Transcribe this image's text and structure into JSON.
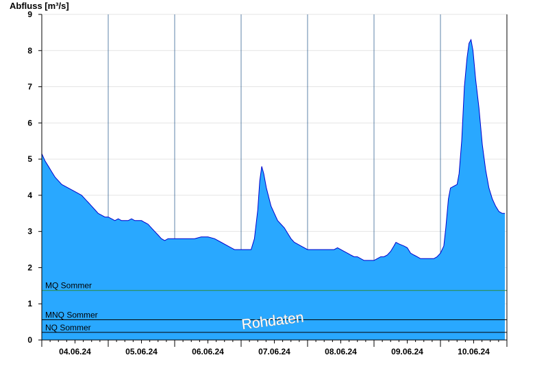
{
  "chart_data": {
    "type": "area",
    "ylabel": "Abfluss [m³/s]",
    "ylim": [
      0,
      9
    ],
    "yticks": [
      0,
      1,
      2,
      3,
      4,
      5,
      6,
      7,
      8,
      9
    ],
    "x_day_labels": [
      "04.06.24",
      "05.06.24",
      "06.06.24",
      "07.06.24",
      "08.06.24",
      "09.06.24",
      "10.06.24"
    ],
    "x_range_days": [
      0,
      7
    ],
    "grid": true,
    "watermark": "Rohdaten",
    "reference_lines": [
      {
        "label": "MQ Sommer",
        "value": 1.37,
        "color": "#2e8b3a"
      },
      {
        "label": "MNQ Sommer",
        "value": 0.56,
        "color": "#000000"
      },
      {
        "label": "NQ Sommer",
        "value": 0.21,
        "color": "#000000"
      }
    ],
    "series": [
      {
        "fill_color": "#29a8ff",
        "line_color": "#0000cc",
        "points": [
          [
            0.0,
            5.15
          ],
          [
            0.05,
            4.95
          ],
          [
            0.1,
            4.8
          ],
          [
            0.15,
            4.65
          ],
          [
            0.2,
            4.5
          ],
          [
            0.25,
            4.4
          ],
          [
            0.3,
            4.3
          ],
          [
            0.4,
            4.2
          ],
          [
            0.5,
            4.1
          ],
          [
            0.6,
            4.0
          ],
          [
            0.65,
            3.9
          ],
          [
            0.7,
            3.8
          ],
          [
            0.75,
            3.7
          ],
          [
            0.8,
            3.6
          ],
          [
            0.85,
            3.5
          ],
          [
            0.9,
            3.45
          ],
          [
            0.95,
            3.4
          ],
          [
            1.0,
            3.4
          ],
          [
            1.05,
            3.35
          ],
          [
            1.1,
            3.3
          ],
          [
            1.15,
            3.35
          ],
          [
            1.2,
            3.3
          ],
          [
            1.25,
            3.3
          ],
          [
            1.3,
            3.3
          ],
          [
            1.35,
            3.35
          ],
          [
            1.4,
            3.3
          ],
          [
            1.45,
            3.3
          ],
          [
            1.5,
            3.3
          ],
          [
            1.55,
            3.25
          ],
          [
            1.6,
            3.2
          ],
          [
            1.65,
            3.1
          ],
          [
            1.7,
            3.0
          ],
          [
            1.75,
            2.9
          ],
          [
            1.8,
            2.8
          ],
          [
            1.85,
            2.75
          ],
          [
            1.9,
            2.8
          ],
          [
            2.0,
            2.8
          ],
          [
            2.1,
            2.8
          ],
          [
            2.2,
            2.8
          ],
          [
            2.3,
            2.8
          ],
          [
            2.4,
            2.85
          ],
          [
            2.5,
            2.85
          ],
          [
            2.6,
            2.8
          ],
          [
            2.7,
            2.7
          ],
          [
            2.8,
            2.6
          ],
          [
            2.85,
            2.55
          ],
          [
            2.9,
            2.5
          ],
          [
            3.0,
            2.5
          ],
          [
            3.1,
            2.5
          ],
          [
            3.15,
            2.5
          ],
          [
            3.2,
            2.8
          ],
          [
            3.25,
            3.6
          ],
          [
            3.28,
            4.4
          ],
          [
            3.31,
            4.8
          ],
          [
            3.34,
            4.6
          ],
          [
            3.38,
            4.2
          ],
          [
            3.45,
            3.7
          ],
          [
            3.5,
            3.5
          ],
          [
            3.55,
            3.3
          ],
          [
            3.6,
            3.2
          ],
          [
            3.65,
            3.1
          ],
          [
            3.7,
            2.95
          ],
          [
            3.75,
            2.8
          ],
          [
            3.8,
            2.7
          ],
          [
            3.85,
            2.65
          ],
          [
            3.9,
            2.6
          ],
          [
            4.0,
            2.5
          ],
          [
            4.1,
            2.5
          ],
          [
            4.2,
            2.5
          ],
          [
            4.3,
            2.5
          ],
          [
            4.4,
            2.5
          ],
          [
            4.45,
            2.55
          ],
          [
            4.5,
            2.5
          ],
          [
            4.55,
            2.45
          ],
          [
            4.6,
            2.4
          ],
          [
            4.65,
            2.35
          ],
          [
            4.7,
            2.3
          ],
          [
            4.75,
            2.3
          ],
          [
            4.8,
            2.25
          ],
          [
            4.85,
            2.2
          ],
          [
            4.9,
            2.2
          ],
          [
            4.95,
            2.2
          ],
          [
            5.0,
            2.2
          ],
          [
            5.05,
            2.25
          ],
          [
            5.1,
            2.3
          ],
          [
            5.15,
            2.3
          ],
          [
            5.2,
            2.35
          ],
          [
            5.25,
            2.45
          ],
          [
            5.3,
            2.6
          ],
          [
            5.33,
            2.7
          ],
          [
            5.38,
            2.65
          ],
          [
            5.45,
            2.6
          ],
          [
            5.5,
            2.55
          ],
          [
            5.55,
            2.4
          ],
          [
            5.6,
            2.35
          ],
          [
            5.65,
            2.3
          ],
          [
            5.7,
            2.25
          ],
          [
            5.8,
            2.25
          ],
          [
            5.9,
            2.25
          ],
          [
            5.95,
            2.3
          ],
          [
            6.0,
            2.4
          ],
          [
            6.05,
            2.6
          ],
          [
            6.08,
            3.1
          ],
          [
            6.12,
            3.9
          ],
          [
            6.15,
            4.2
          ],
          [
            6.2,
            4.25
          ],
          [
            6.25,
            4.3
          ],
          [
            6.28,
            4.6
          ],
          [
            6.32,
            5.5
          ],
          [
            6.36,
            7.0
          ],
          [
            6.4,
            7.8
          ],
          [
            6.43,
            8.2
          ],
          [
            6.46,
            8.3
          ],
          [
            6.49,
            8.0
          ],
          [
            6.53,
            7.2
          ],
          [
            6.58,
            6.4
          ],
          [
            6.63,
            5.4
          ],
          [
            6.68,
            4.7
          ],
          [
            6.73,
            4.2
          ],
          [
            6.78,
            3.9
          ],
          [
            6.83,
            3.7
          ],
          [
            6.88,
            3.55
          ],
          [
            6.93,
            3.5
          ],
          [
            6.97,
            3.5
          ]
        ]
      }
    ]
  }
}
